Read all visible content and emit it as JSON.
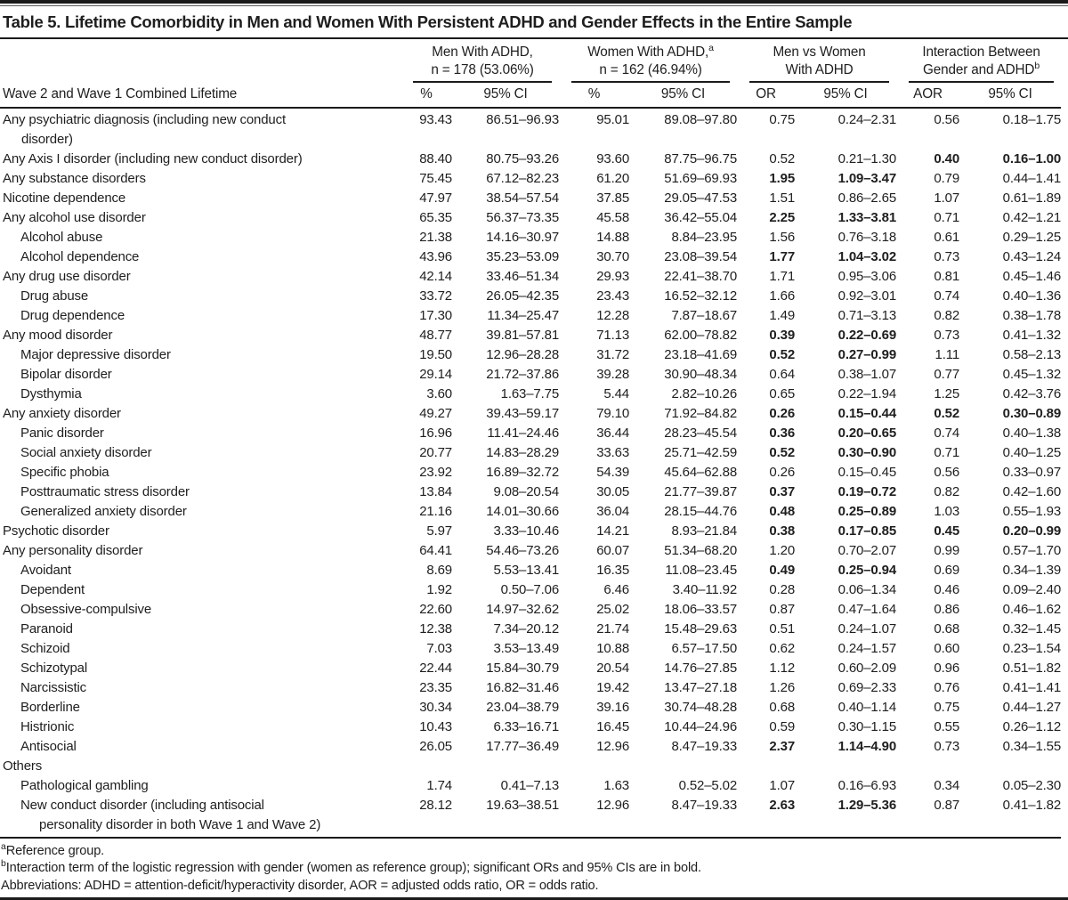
{
  "table": {
    "title": "Table 5. Lifetime Comorbidity in Men and Women With Persistent ADHD and Gender Effects in the Entire Sample",
    "stub_header": "Wave 2 and Wave 1 Combined Lifetime",
    "col_groups": [
      {
        "line1": "Men With ADHD,",
        "sup1": "",
        "line2": "n = 178 (53.06%)",
        "sup2": ""
      },
      {
        "line1": "Women With ADHD,",
        "sup1": "a",
        "line2": "n = 162 (46.94%)",
        "sup2": ""
      },
      {
        "line1": "Men vs Women",
        "sup1": "",
        "line2": "With ADHD",
        "sup2": ""
      },
      {
        "line1": "Interaction Between",
        "sup1": "",
        "line2": "Gender and ADHD",
        "sup2": "b"
      }
    ],
    "sub_headers": [
      "%",
      "95% CI",
      "%",
      "95% CI",
      "OR",
      "95% CI",
      "AOR",
      "95% CI"
    ],
    "cell_names": [
      "men-pct",
      "men-ci",
      "women-pct",
      "women-ci",
      "or",
      "or-ci",
      "aor",
      "aor-ci"
    ],
    "rows": [
      {
        "indent": 0,
        "label": "Any psychiatric diagnosis (including new conduct",
        "label2": "disorder)",
        "cells": [
          "93.43",
          "86.51–96.93",
          "95.01",
          "89.08–97.80",
          "0.75",
          "0.24–2.31",
          "0.56",
          "0.18–1.75"
        ]
      },
      {
        "indent": 0,
        "label": "Any Axis I disorder (including new conduct disorder)",
        "cells": [
          "88.40",
          "80.75–93.26",
          "93.60",
          "87.75–96.75",
          "0.52",
          "0.21–1.30",
          "0.40",
          "0.16–1.00"
        ],
        "bold_aor": true
      },
      {
        "indent": 0,
        "label": "Any substance disorders",
        "cells": [
          "75.45",
          "67.12–82.23",
          "61.20",
          "51.69–69.93",
          "1.95",
          "1.09–3.47",
          "0.79",
          "0.44–1.41"
        ],
        "bold_or": true
      },
      {
        "indent": 0,
        "label": "Nicotine dependence",
        "cells": [
          "47.97",
          "38.54–57.54",
          "37.85",
          "29.05–47.53",
          "1.51",
          "0.86–2.65",
          "1.07",
          "0.61–1.89"
        ]
      },
      {
        "indent": 0,
        "label": "Any alcohol use disorder",
        "cells": [
          "65.35",
          "56.37–73.35",
          "45.58",
          "36.42–55.04",
          "2.25",
          "1.33–3.81",
          "0.71",
          "0.42–1.21"
        ],
        "bold_or": true
      },
      {
        "indent": 1,
        "label": "Alcohol abuse",
        "cells": [
          "21.38",
          "14.16–30.97",
          "14.88",
          "8.84–23.95",
          "1.56",
          "0.76–3.18",
          "0.61",
          "0.29–1.25"
        ]
      },
      {
        "indent": 1,
        "label": "Alcohol dependence",
        "cells": [
          "43.96",
          "35.23–53.09",
          "30.70",
          "23.08–39.54",
          "1.77",
          "1.04–3.02",
          "0.73",
          "0.43–1.24"
        ],
        "bold_or": true
      },
      {
        "indent": 0,
        "label": "Any drug use disorder",
        "cells": [
          "42.14",
          "33.46–51.34",
          "29.93",
          "22.41–38.70",
          "1.71",
          "0.95–3.06",
          "0.81",
          "0.45–1.46"
        ]
      },
      {
        "indent": 1,
        "label": "Drug abuse",
        "cells": [
          "33.72",
          "26.05–42.35",
          "23.43",
          "16.52–32.12",
          "1.66",
          "0.92–3.01",
          "0.74",
          "0.40–1.36"
        ]
      },
      {
        "indent": 1,
        "label": "Drug dependence",
        "cells": [
          "17.30",
          "11.34–25.47",
          "12.28",
          "7.87–18.67",
          "1.49",
          "0.71–3.13",
          "0.82",
          "0.38–1.78"
        ]
      },
      {
        "indent": 0,
        "label": "Any mood disorder",
        "cells": [
          "48.77",
          "39.81–57.81",
          "71.13",
          "62.00–78.82",
          "0.39",
          "0.22–0.69",
          "0.73",
          "0.41–1.32"
        ],
        "bold_or": true
      },
      {
        "indent": 1,
        "label": "Major depressive disorder",
        "cells": [
          "19.50",
          "12.96–28.28",
          "31.72",
          "23.18–41.69",
          "0.52",
          "0.27–0.99",
          "1.11",
          "0.58–2.13"
        ],
        "bold_or": true
      },
      {
        "indent": 1,
        "label": "Bipolar disorder",
        "cells": [
          "29.14",
          "21.72–37.86",
          "39.28",
          "30.90–48.34",
          "0.64",
          "0.38–1.07",
          "0.77",
          "0.45–1.32"
        ]
      },
      {
        "indent": 1,
        "label": "Dysthymia",
        "cells": [
          "3.60",
          "1.63–7.75",
          "5.44",
          "2.82–10.26",
          "0.65",
          "0.22–1.94",
          "1.25",
          "0.42–3.76"
        ]
      },
      {
        "indent": 0,
        "label": "Any anxiety disorder",
        "cells": [
          "49.27",
          "39.43–59.17",
          "79.10",
          "71.92–84.82",
          "0.26",
          "0.15–0.44",
          "0.52",
          "0.30–0.89"
        ],
        "bold_or": true,
        "bold_aor": true
      },
      {
        "indent": 1,
        "label": "Panic disorder",
        "cells": [
          "16.96",
          "11.41–24.46",
          "36.44",
          "28.23–45.54",
          "0.36",
          "0.20–0.65",
          "0.74",
          "0.40–1.38"
        ],
        "bold_or": true
      },
      {
        "indent": 1,
        "label": "Social anxiety disorder",
        "cells": [
          "20.77",
          "14.83–28.29",
          "33.63",
          "25.71–42.59",
          "0.52",
          "0.30–0.90",
          "0.71",
          "0.40–1.25"
        ],
        "bold_or": true
      },
      {
        "indent": 1,
        "label": "Specific phobia",
        "cells": [
          "23.92",
          "16.89–32.72",
          "54.39",
          "45.64–62.88",
          "0.26",
          "0.15–0.45",
          "0.56",
          "0.33–0.97"
        ]
      },
      {
        "indent": 1,
        "label": "Posttraumatic stress disorder",
        "cells": [
          "13.84",
          "9.08–20.54",
          "30.05",
          "21.77–39.87",
          "0.37",
          "0.19–0.72",
          "0.82",
          "0.42–1.60"
        ],
        "bold_or": true
      },
      {
        "indent": 1,
        "label": "Generalized anxiety disorder",
        "cells": [
          "21.16",
          "14.01–30.66",
          "36.04",
          "28.15–44.76",
          "0.48",
          "0.25–0.89",
          "1.03",
          "0.55–1.93"
        ],
        "bold_or": true
      },
      {
        "indent": 0,
        "label": "Psychotic disorder",
        "cells": [
          "5.97",
          "3.33–10.46",
          "14.21",
          "8.93–21.84",
          "0.38",
          "0.17–0.85",
          "0.45",
          "0.20–0.99"
        ],
        "bold_or": true,
        "bold_aor": true
      },
      {
        "indent": 0,
        "label": "Any personality disorder",
        "cells": [
          "64.41",
          "54.46–73.26",
          "60.07",
          "51.34–68.20",
          "1.20",
          "0.70–2.07",
          "0.99",
          "0.57–1.70"
        ]
      },
      {
        "indent": 1,
        "label": "Avoidant",
        "cells": [
          "8.69",
          "5.53–13.41",
          "16.35",
          "11.08–23.45",
          "0.49",
          "0.25–0.94",
          "0.69",
          "0.34–1.39"
        ],
        "bold_or": true
      },
      {
        "indent": 1,
        "label": "Dependent",
        "cells": [
          "1.92",
          "0.50–7.06",
          "6.46",
          "3.40–11.92",
          "0.28",
          "0.06–1.34",
          "0.46",
          "0.09–2.40"
        ]
      },
      {
        "indent": 1,
        "label": "Obsessive-compulsive",
        "cells": [
          "22.60",
          "14.97–32.62",
          "25.02",
          "18.06–33.57",
          "0.87",
          "0.47–1.64",
          "0.86",
          "0.46–1.62"
        ]
      },
      {
        "indent": 1,
        "label": "Paranoid",
        "cells": [
          "12.38",
          "7.34–20.12",
          "21.74",
          "15.48–29.63",
          "0.51",
          "0.24–1.07",
          "0.68",
          "0.32–1.45"
        ]
      },
      {
        "indent": 1,
        "label": "Schizoid",
        "cells": [
          "7.03",
          "3.53–13.49",
          "10.88",
          "6.57–17.50",
          "0.62",
          "0.24–1.57",
          "0.60",
          "0.23–1.54"
        ]
      },
      {
        "indent": 1,
        "label": "Schizotypal",
        "cells": [
          "22.44",
          "15.84–30.79",
          "20.54",
          "14.76–27.85",
          "1.12",
          "0.60–2.09",
          "0.96",
          "0.51–1.82"
        ]
      },
      {
        "indent": 1,
        "label": "Narcissistic",
        "cells": [
          "23.35",
          "16.82–31.46",
          "19.42",
          "13.47–27.18",
          "1.26",
          "0.69–2.33",
          "0.76",
          "0.41–1.41"
        ]
      },
      {
        "indent": 1,
        "label": "Borderline",
        "cells": [
          "30.34",
          "23.04–38.79",
          "39.16",
          "30.74–48.28",
          "0.68",
          "0.40–1.14",
          "0.75",
          "0.44–1.27"
        ]
      },
      {
        "indent": 1,
        "label": "Histrionic",
        "cells": [
          "10.43",
          "6.33–16.71",
          "16.45",
          "10.44–24.96",
          "0.59",
          "0.30–1.15",
          "0.55",
          "0.26–1.12"
        ]
      },
      {
        "indent": 1,
        "label": "Antisocial",
        "cells": [
          "26.05",
          "17.77–36.49",
          "12.96",
          "8.47–19.33",
          "2.37",
          "1.14–4.90",
          "0.73",
          "0.34–1.55"
        ],
        "bold_or": true
      },
      {
        "indent": 0,
        "label": "Others",
        "cells": [
          "",
          "",
          "",
          "",
          "",
          "",
          "",
          ""
        ]
      },
      {
        "indent": 1,
        "label": "Pathological gambling",
        "cells": [
          "1.74",
          "0.41–7.13",
          "1.63",
          "0.52–5.02",
          "1.07",
          "0.16–6.93",
          "0.34",
          "0.05–2.30"
        ]
      },
      {
        "indent": 1,
        "label": "New conduct disorder (including antisocial",
        "label2": "personality disorder in both Wave 1 and Wave 2)",
        "cells": [
          "28.12",
          "19.63–38.51",
          "12.96",
          "8.47–19.33",
          "2.63",
          "1.29–5.36",
          "0.87",
          "0.41–1.82"
        ],
        "bold_or": true
      }
    ],
    "footnotes": [
      {
        "sup": "a",
        "text": "Reference group."
      },
      {
        "sup": "b",
        "text": "Interaction term of the logistic regression with gender (women as reference group); significant ORs and 95% CIs are in bold."
      },
      {
        "sup": "",
        "text": "Abbreviations: ADHD = attention-deficit/hyperactivity disorder, AOR = adjusted odds ratio, OR = odds ratio."
      }
    ]
  }
}
